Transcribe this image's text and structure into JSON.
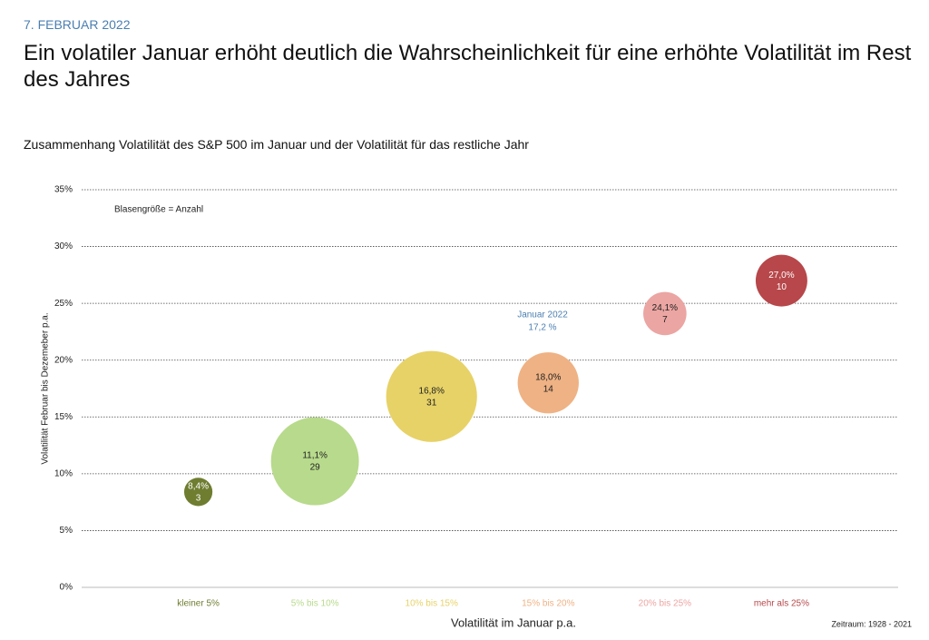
{
  "chart_data": {
    "type": "bubble",
    "date": "7. FEBRUAR 2022",
    "title": "Ein volatiler Januar erhöht deutlich die Wahrscheinlichkeit für eine erhöhte Volatilität im Rest des Jahres",
    "subtitle": "Zusammenhang Volatilität des S&P 500 im Januar und der Volatilität für das restliche Jahr",
    "x_label": "Volatilität im Januar p.a.",
    "y_label": "Volatilität Februar  bis Dezemeber p.a.",
    "annotations": [
      "Blasengröße = Anzahl",
      "Januar 2022",
      "17,2 %",
      "Zeitraum: 1928 - 2021"
    ],
    "categories": [
      "kleiner 5%",
      "5% bis 10%",
      "10%  bis 15%",
      "15% bis 20%",
      "20%  bis 25%",
      "mehr als 25%"
    ],
    "values": [
      8.4,
      11.1,
      16.8,
      18.0,
      24.1,
      27.0
    ],
    "value_labels": [
      "8,4%",
      "11,1%",
      "16,8%",
      "18,0%",
      "24,1%",
      "27,0%"
    ],
    "sizes": [
      3,
      29,
      31,
      14,
      7,
      10
    ],
    "colors": [
      "#6e7d30",
      "#b8da8c",
      "#e7d267",
      "#efb284",
      "#eba5a2",
      "#b7474a"
    ],
    "ylim": [
      0,
      35
    ],
    "yticks": [
      {
        "value": 0,
        "label": "0%"
      },
      {
        "value": 5,
        "label": "5%"
      },
      {
        "value": 10,
        "label": "10%"
      },
      {
        "value": 15,
        "label": "15%"
      },
      {
        "value": 20,
        "label": "20%"
      },
      {
        "value": 25,
        "label": "25%"
      },
      {
        "value": 30,
        "label": "30%"
      },
      {
        "value": 35,
        "label": "35%"
      }
    ],
    "grid": true
  }
}
